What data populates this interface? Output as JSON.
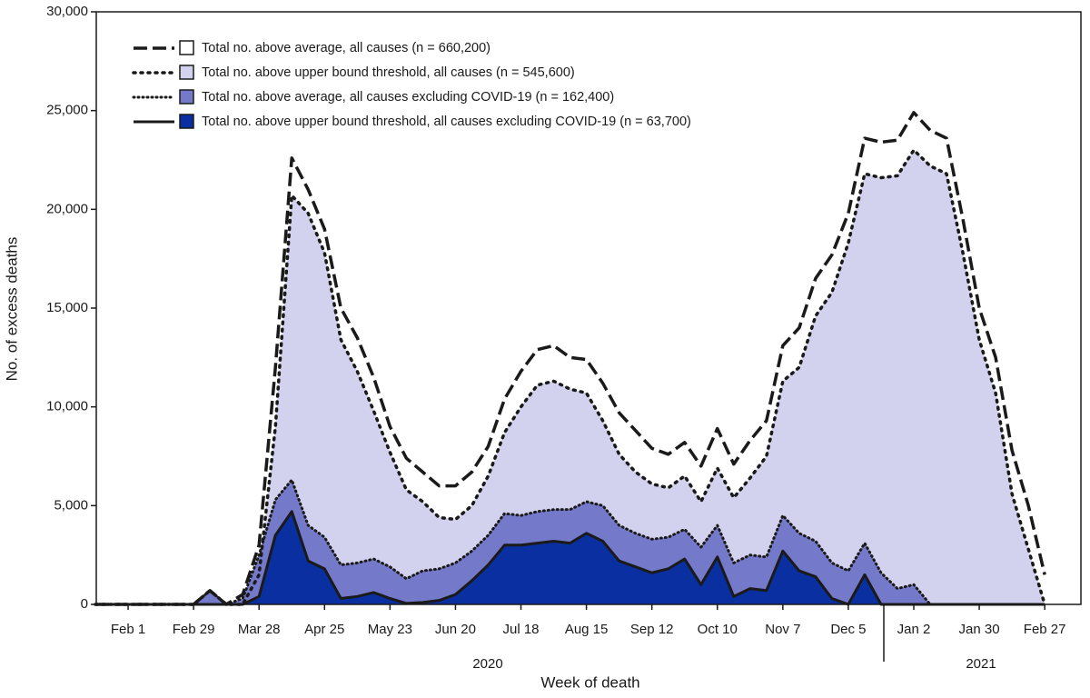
{
  "chart_data": {
    "type": "area",
    "x_label": "Week of death",
    "y_label": "No. of excess deaths",
    "categories": [
      null,
      null,
      "Feb 1",
      null,
      null,
      null,
      "Feb 29",
      null,
      null,
      null,
      "Mar 28",
      null,
      null,
      null,
      "Apr 25",
      null,
      null,
      null,
      "May 23",
      null,
      null,
      null,
      "Jun 20",
      null,
      null,
      null,
      "Jul 18",
      null,
      null,
      null,
      "Aug 15",
      null,
      null,
      null,
      "Sep 12",
      null,
      null,
      null,
      "Oct 10",
      null,
      null,
      null,
      "Nov 7",
      null,
      null,
      null,
      "Dec 5",
      null,
      null,
      null,
      "Jan 2",
      null,
      null,
      null,
      "Jan 30",
      null,
      null,
      null,
      "Feb 27"
    ],
    "year_labels": [
      "2020",
      "2021"
    ],
    "ylim": [
      0,
      30000
    ],
    "yticks": [
      0,
      {
        "value": 5000,
        "label": "5,000"
      },
      {
        "value": 10000,
        "label": "10,000"
      },
      {
        "value": 15000,
        "label": "15,000"
      },
      {
        "value": 20000,
        "label": "20,000"
      },
      {
        "value": 25000,
        "label": "25,000"
      },
      {
        "value": 30000,
        "label": "30,000"
      }
    ],
    "series": [
      {
        "name": "Total no. above average, all causes (n = 660,200)",
        "color": "#ffffff",
        "line_style": "dashed",
        "values": [
          0,
          0,
          0,
          0,
          0,
          0,
          0,
          700,
          0,
          500,
          3000,
          12000,
          22600,
          21000,
          19000,
          15000,
          13500,
          11500,
          9000,
          7400,
          6700,
          6000,
          6000,
          6700,
          8000,
          10400,
          11800,
          12900,
          13100,
          12500,
          12400,
          11200,
          9700,
          8800,
          7900,
          7600,
          8200,
          7000,
          8900,
          7100,
          8300,
          9300,
          13100,
          14000,
          16500,
          17700,
          19800,
          23600,
          23400,
          23500,
          24900,
          24000,
          23600,
          19500,
          15000,
          12500,
          7800,
          5000,
          1500
        ]
      },
      {
        "name": "Total no. above upper bound threshold, all causes (n = 545,600)",
        "color": "#d3d2ee",
        "line_style": "dotted",
        "values": [
          0,
          0,
          0,
          0,
          0,
          0,
          0,
          700,
          0,
          0,
          1500,
          9000,
          20700,
          19800,
          17800,
          13400,
          11800,
          9800,
          7700,
          5800,
          5200,
          4400,
          4300,
          5000,
          6500,
          8700,
          10000,
          11100,
          11300,
          10900,
          10700,
          9300,
          7600,
          6700,
          6100,
          5900,
          6500,
          5200,
          6900,
          5400,
          6400,
          7500,
          11300,
          12000,
          14600,
          15800,
          18300,
          21800,
          21600,
          21700,
          23000,
          22200,
          21800,
          17800,
          13400,
          10700,
          5600,
          2800,
          0
        ]
      },
      {
        "name": "Total no. above average, all causes excluding COVID-19 (n = 162,400)",
        "color": "#7479c9",
        "line_style": "dotted-fine",
        "values": [
          0,
          0,
          0,
          0,
          0,
          0,
          0,
          700,
          0,
          300,
          2500,
          5300,
          6300,
          4000,
          3400,
          2000,
          2100,
          2300,
          1900,
          1300,
          1700,
          1800,
          2100,
          2700,
          3500,
          4600,
          4500,
          4700,
          4800,
          4800,
          5200,
          5000,
          4000,
          3600,
          3300,
          3400,
          3800,
          2900,
          4000,
          2100,
          2500,
          2400,
          4500,
          3600,
          3200,
          2100,
          1700,
          3100,
          1600,
          800,
          1000,
          0,
          0,
          0,
          0,
          0,
          0,
          0,
          0
        ]
      },
      {
        "name": "Total no. above upper bound threshold, all causes excluding COVID-19 (n = 63,700)",
        "color": "#0a2fa0",
        "line_style": "solid",
        "values": [
          0,
          0,
          0,
          0,
          0,
          0,
          0,
          0,
          0,
          0,
          400,
          3500,
          4700,
          2200,
          1800,
          300,
          400,
          600,
          300,
          50,
          100,
          200,
          500,
          1200,
          2000,
          3000,
          3000,
          3100,
          3200,
          3100,
          3600,
          3200,
          2200,
          1900,
          1600,
          1800,
          2300,
          1000,
          2400,
          400,
          800,
          700,
          2700,
          1700,
          1400,
          300,
          0,
          1500,
          0,
          0,
          0,
          0,
          0,
          0,
          0,
          0,
          0,
          0,
          0
        ]
      }
    ]
  }
}
